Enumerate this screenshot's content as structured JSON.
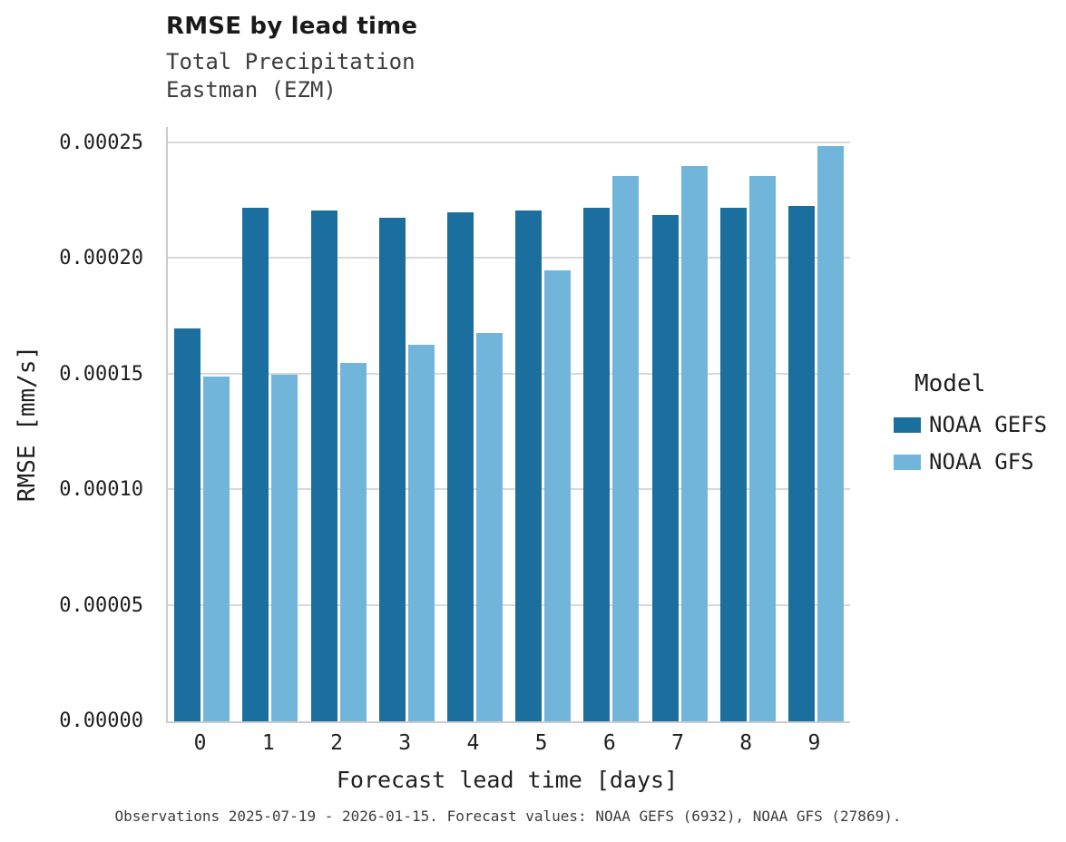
{
  "chart_data": {
    "type": "bar",
    "title": "RMSE by lead time",
    "subtitle_lines": [
      "Total Precipitation",
      "Eastman (EZM)"
    ],
    "xlabel": "Forecast lead time [days]",
    "ylabel": "RMSE [mm/s]",
    "categories": [
      "0",
      "1",
      "2",
      "3",
      "4",
      "5",
      "6",
      "7",
      "8",
      "9"
    ],
    "series": [
      {
        "name": "NOAA GEFS",
        "color": "#1a6f9e",
        "values": [
          0.00017,
          0.000222,
          0.000221,
          0.000218,
          0.00022,
          0.000221,
          0.000222,
          0.000219,
          0.000222,
          0.000223
        ]
      },
      {
        "name": "NOAA GFS",
        "color": "#72b5da",
        "values": [
          0.000149,
          0.00015,
          0.000155,
          0.000163,
          0.000168,
          0.000195,
          0.000236,
          0.00024,
          0.000236,
          0.000249
        ]
      }
    ],
    "ylim": [
      0,
      0.00025
    ],
    "yticks": [
      0,
      5e-05,
      0.0001,
      0.00015,
      0.0002,
      0.00025
    ],
    "ytick_labels": [
      "0.00000",
      "0.00005",
      "0.00010",
      "0.00015",
      "0.00020",
      "0.00025"
    ],
    "grid": "horizontal",
    "legend_title": "Model",
    "legend_position": "right",
    "caption": "Observations 2025-07-19 - 2026-01-15. Forecast values: NOAA GEFS (6932), NOAA GFS (27869)."
  }
}
